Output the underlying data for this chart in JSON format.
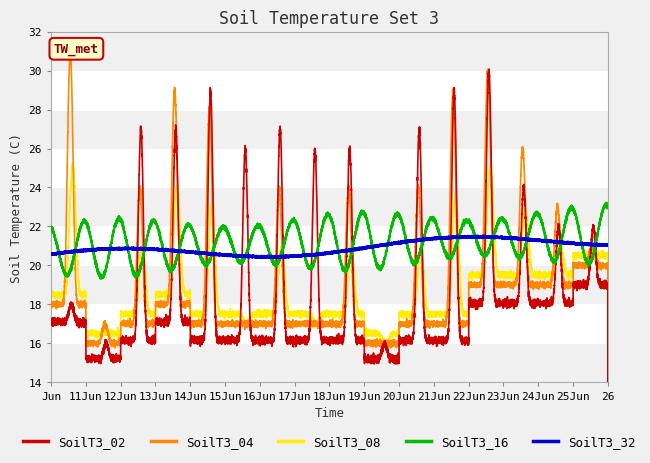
{
  "title": "Soil Temperature Set 3",
  "xlabel": "Time",
  "ylabel": "Soil Temperature (C)",
  "ylim": [
    14,
    32
  ],
  "xlim": [
    0,
    16
  ],
  "xtick_labels": [
    "Jun",
    "11Jun",
    "12Jun",
    "13Jun",
    "14Jun",
    "15Jun",
    "16Jun",
    "17Jun",
    "18Jun",
    "19Jun",
    "20Jun",
    "21Jun",
    "22Jun",
    "23Jun",
    "24Jun",
    "25Jun",
    "26"
  ],
  "xtick_positions": [
    0,
    1,
    2,
    3,
    4,
    5,
    6,
    7,
    8,
    9,
    10,
    11,
    12,
    13,
    14,
    15,
    16
  ],
  "ytick_labels": [
    "14",
    "16",
    "18",
    "20",
    "22",
    "24",
    "26",
    "28",
    "30",
    "32"
  ],
  "ytick_values": [
    14,
    16,
    18,
    20,
    22,
    24,
    26,
    28,
    30,
    32
  ],
  "label_box_text": "TW_met",
  "label_box_bg": "#ffffcc",
  "label_box_edge": "#cc0000",
  "label_box_text_color": "#880000",
  "fig_bg": "#f0f0f0",
  "plot_bg": "#ffffff",
  "band_colors": [
    "#f0f0f0",
    "#ffffff"
  ],
  "line_colors": {
    "SoilT3_02": "#cc0000",
    "SoilT3_04": "#ff8800",
    "SoilT3_08": "#ffee00",
    "SoilT3_16": "#00bb00",
    "SoilT3_32": "#0000cc"
  },
  "line_widths": {
    "SoilT3_02": 1.2,
    "SoilT3_04": 1.2,
    "SoilT3_08": 1.2,
    "SoilT3_16": 1.5,
    "SoilT3_32": 1.8
  },
  "legend_labels": [
    "SoilT3_02",
    "SoilT3_04",
    "SoilT3_08",
    "SoilT3_16",
    "SoilT3_32"
  ],
  "font_family": "monospace",
  "title_fontsize": 12,
  "axis_fontsize": 9,
  "tick_fontsize": 8,
  "legend_fontsize": 9
}
